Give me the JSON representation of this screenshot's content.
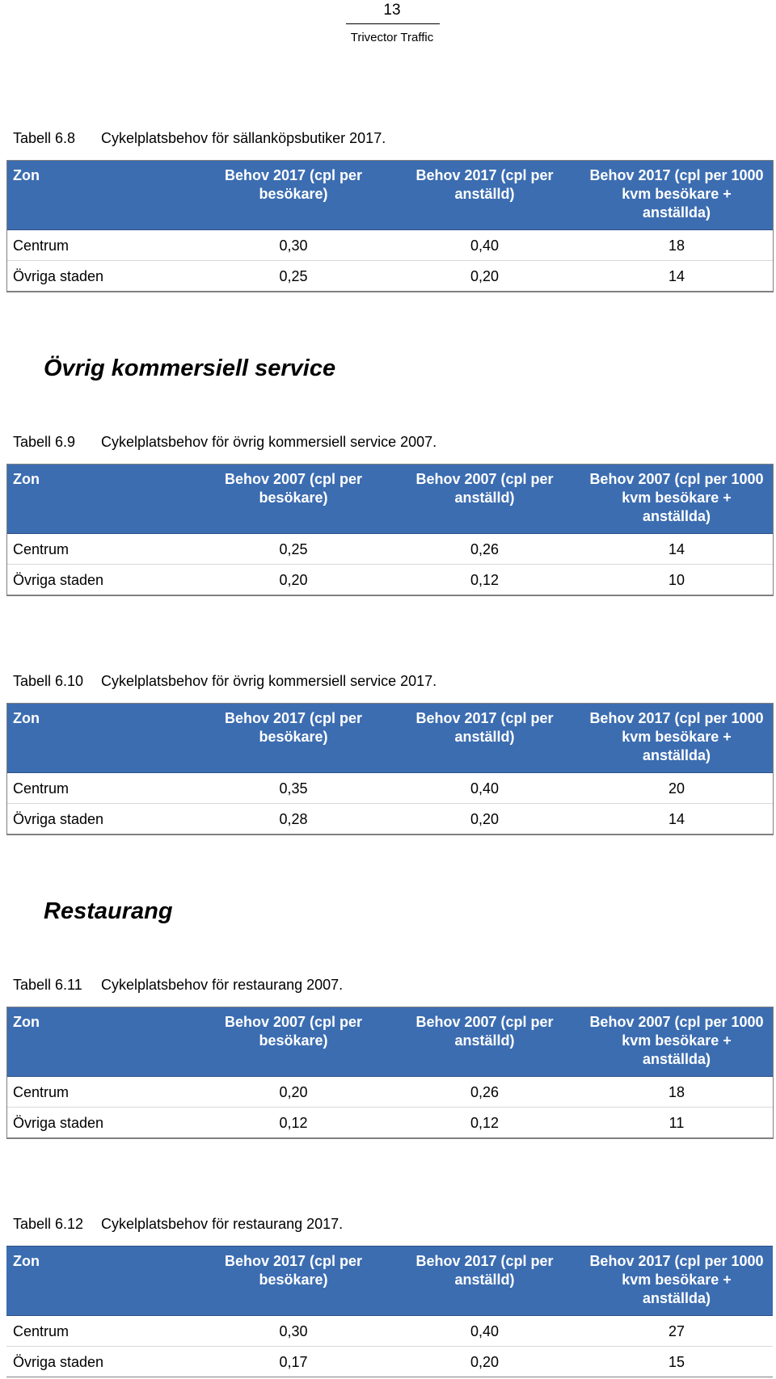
{
  "header": {
    "page_number": "13",
    "company": "Trivector Traffic"
  },
  "sections": [
    {
      "heading": "Övrig kommersiell service"
    },
    {
      "heading": "Restaurang"
    }
  ],
  "tables": [
    {
      "caption_number": "Tabell 6.8",
      "caption_text": "Cykelplatsbehov för sällanköpsbutiker 2017.",
      "headers": [
        "Zon",
        "Behov 2017 (cpl per besökare)",
        "Behov 2017 (cpl per anställd)",
        "Behov 2017 (cpl per 1000 kvm besökare + anställda)"
      ],
      "rows": [
        [
          "Centrum",
          "0,30",
          "0,40",
          "18"
        ],
        [
          "Övriga staden",
          "0,25",
          "0,20",
          "14"
        ]
      ]
    },
    {
      "caption_number": "Tabell 6.9",
      "caption_text": "Cykelplatsbehov för övrig kommersiell service 2007.",
      "headers": [
        "Zon",
        "Behov 2007 (cpl per besökare)",
        "Behov 2007 (cpl per anställd)",
        "Behov 2007 (cpl per 1000 kvm besökare + anställda)"
      ],
      "rows": [
        [
          "Centrum",
          "0,25",
          "0,26",
          "14"
        ],
        [
          "Övriga staden",
          "0,20",
          "0,12",
          "10"
        ]
      ]
    },
    {
      "caption_number": "Tabell 6.10",
      "caption_text": "Cykelplatsbehov för övrig kommersiell service 2017.",
      "headers": [
        "Zon",
        "Behov 2017 (cpl per besökare)",
        "Behov 2017 (cpl per anställd)",
        "Behov 2017 (cpl per 1000 kvm besökare + anställda)"
      ],
      "rows": [
        [
          "Centrum",
          "0,35",
          "0,40",
          "20"
        ],
        [
          "Övriga staden",
          "0,28",
          "0,20",
          "14"
        ]
      ]
    },
    {
      "caption_number": "Tabell 6.11",
      "caption_text": "Cykelplatsbehov för restaurang 2007.",
      "headers": [
        "Zon",
        "Behov 2007 (cpl per besökare)",
        "Behov 2007 (cpl per anställd)",
        "Behov 2007 (cpl per 1000 kvm besökare + anställda)"
      ],
      "rows": [
        [
          "Centrum",
          "0,20",
          "0,26",
          "18"
        ],
        [
          "Övriga staden",
          "0,12",
          "0,12",
          "11"
        ]
      ]
    },
    {
      "caption_number": "Tabell 6.12",
      "caption_text": "Cykelplatsbehov för restaurang 2017.",
      "headers": [
        "Zon",
        "Behov 2017 (cpl per besökare)",
        "Behov 2017 (cpl per anställd)",
        "Behov 2017 (cpl per 1000 kvm besökare + anställda)"
      ],
      "rows": [
        [
          "Centrum",
          "0,30",
          "0,40",
          "27"
        ],
        [
          "Övriga staden",
          "0,17",
          "0,20",
          "15"
        ]
      ]
    }
  ]
}
